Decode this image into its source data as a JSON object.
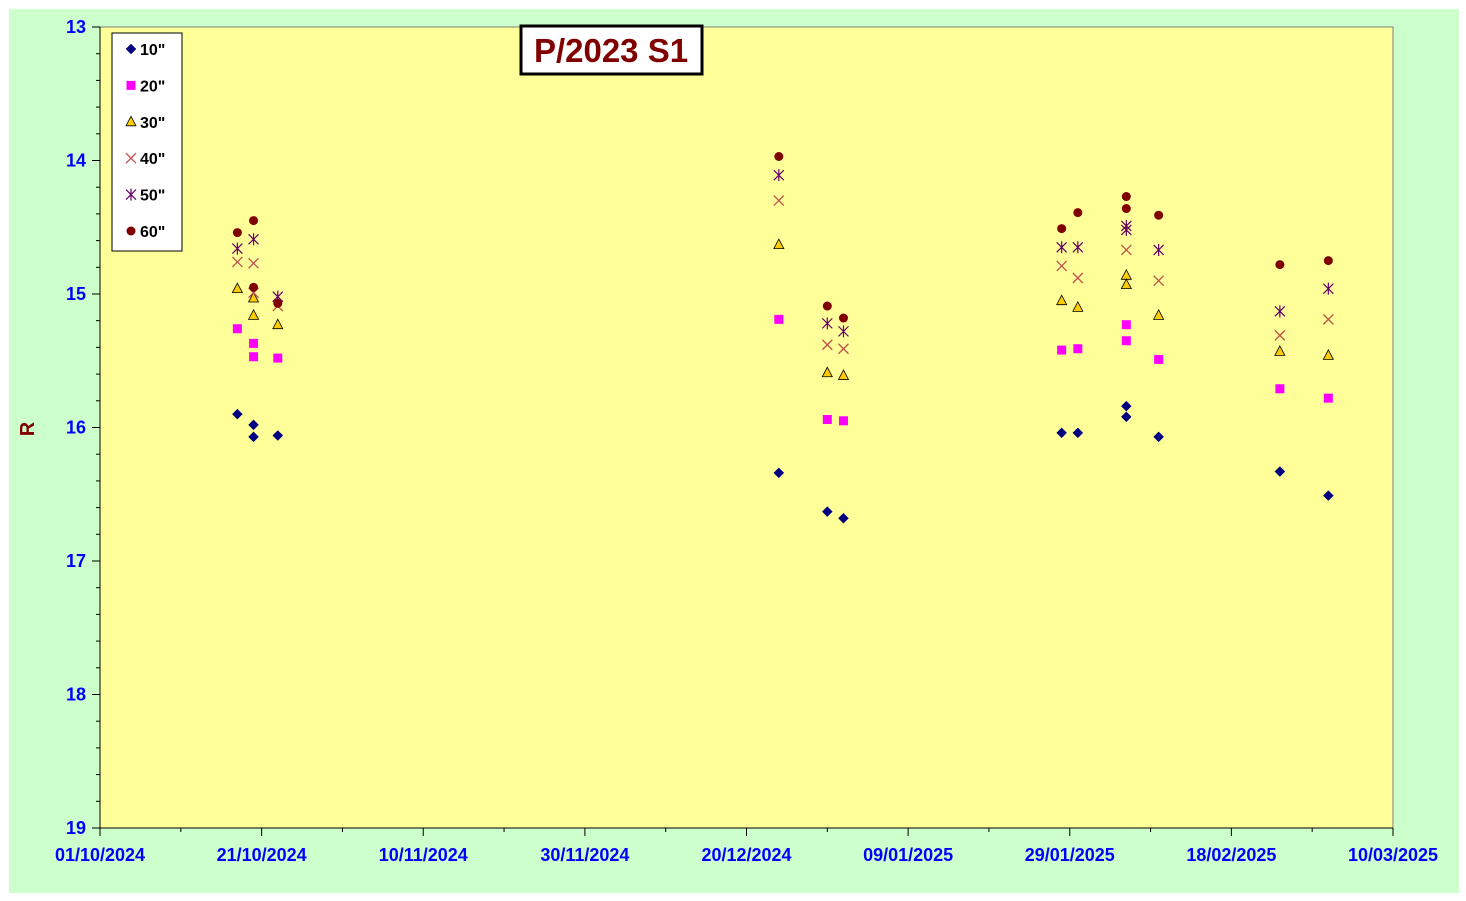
{
  "chart_data": {
    "type": "scatter",
    "title": "P/2023 S1",
    "ylabel": "R",
    "xlabel": "",
    "y_reversed": true,
    "ylim": [
      13,
      19
    ],
    "y_ticks": [
      13,
      14,
      15,
      16,
      17,
      18,
      19
    ],
    "xlim": [
      "2024-10-01",
      "2025-03-10"
    ],
    "x_tick_labels": [
      "01/10/2024",
      "21/10/2024",
      "10/11/2024",
      "30/11/2024",
      "20/12/2024",
      "09/01/2025",
      "29/01/2025",
      "18/02/2025",
      "10/03/2025"
    ],
    "grid": false,
    "legend_position": "top-left",
    "colors": {
      "plot_background": "#ffff99",
      "chart_background": "#ccffcc",
      "tick_labels": "#0000ff",
      "title": "#800000"
    },
    "series": [
      {
        "name": "10\"",
        "marker": "diamond",
        "color": "#000080",
        "x": [
          "2024-10-18",
          "2024-10-20",
          "2024-10-20",
          "2024-10-23",
          "2024-12-24",
          "2024-12-30",
          "2025-01-01",
          "2025-01-28",
          "2025-01-30",
          "2025-02-05",
          "2025-02-05",
          "2025-02-09",
          "2025-02-24",
          "2025-03-02"
        ],
        "y": [
          15.9,
          15.98,
          16.07,
          16.06,
          16.34,
          16.63,
          16.68,
          16.04,
          16.04,
          15.84,
          15.92,
          16.07,
          16.33,
          16.51
        ]
      },
      {
        "name": "20\"",
        "marker": "square",
        "color": "#ff00ff",
        "x": [
          "2024-10-18",
          "2024-10-20",
          "2024-10-20",
          "2024-10-23",
          "2024-12-24",
          "2024-12-30",
          "2025-01-01",
          "2025-01-28",
          "2025-01-30",
          "2025-02-05",
          "2025-02-05",
          "2025-02-09",
          "2025-02-24",
          "2025-03-02"
        ],
        "y": [
          15.26,
          15.37,
          15.47,
          15.48,
          15.19,
          15.94,
          15.95,
          15.42,
          15.41,
          15.23,
          15.35,
          15.49,
          15.71,
          15.78
        ]
      },
      {
        "name": "30\"",
        "marker": "triangle",
        "color": "#ffcc00",
        "x": [
          "2024-10-18",
          "2024-10-20",
          "2024-10-20",
          "2024-10-23",
          "2024-12-24",
          "2024-12-30",
          "2025-01-01",
          "2025-01-28",
          "2025-01-30",
          "2025-02-05",
          "2025-02-05",
          "2025-02-09",
          "2025-02-24",
          "2025-03-02"
        ],
        "y": [
          14.96,
          15.03,
          15.16,
          15.23,
          14.63,
          15.59,
          15.61,
          15.05,
          15.1,
          14.86,
          14.93,
          15.16,
          15.43,
          15.46
        ]
      },
      {
        "name": "40\"",
        "marker": "x",
        "color": "#c0504d",
        "x": [
          "2024-10-18",
          "2024-10-20",
          "2024-10-20",
          "2024-10-23",
          "2024-12-24",
          "2024-12-30",
          "2025-01-01",
          "2025-01-28",
          "2025-01-30",
          "2025-02-05",
          "2025-02-09",
          "2025-02-24",
          "2025-03-02"
        ],
        "y": [
          14.76,
          14.77,
          14.99,
          15.09,
          14.3,
          15.38,
          15.41,
          14.79,
          14.88,
          14.67,
          14.9,
          15.31,
          15.19
        ]
      },
      {
        "name": "50\"",
        "marker": "star",
        "color": "#660066",
        "x": [
          "2024-10-18",
          "2024-10-20",
          "2024-10-23",
          "2024-12-24",
          "2024-12-30",
          "2025-01-01",
          "2025-01-28",
          "2025-01-30",
          "2025-02-05",
          "2025-02-05",
          "2025-02-09",
          "2025-02-24",
          "2025-03-02"
        ],
        "y": [
          14.66,
          14.59,
          15.02,
          14.11,
          15.22,
          15.28,
          14.65,
          14.65,
          14.49,
          14.52,
          14.67,
          15.13,
          14.96
        ]
      },
      {
        "name": "60\"",
        "marker": "circle",
        "color": "#800000",
        "x": [
          "2024-10-18",
          "2024-10-20",
          "2024-10-20",
          "2024-10-23",
          "2024-12-24",
          "2024-12-30",
          "2025-01-01",
          "2025-01-28",
          "2025-01-30",
          "2025-02-05",
          "2025-02-05",
          "2025-02-09",
          "2025-02-24",
          "2025-03-02"
        ],
        "y": [
          14.54,
          14.45,
          14.95,
          15.07,
          13.97,
          15.09,
          15.18,
          14.51,
          14.39,
          14.27,
          14.36,
          14.41,
          14.78,
          14.75
        ]
      }
    ]
  }
}
